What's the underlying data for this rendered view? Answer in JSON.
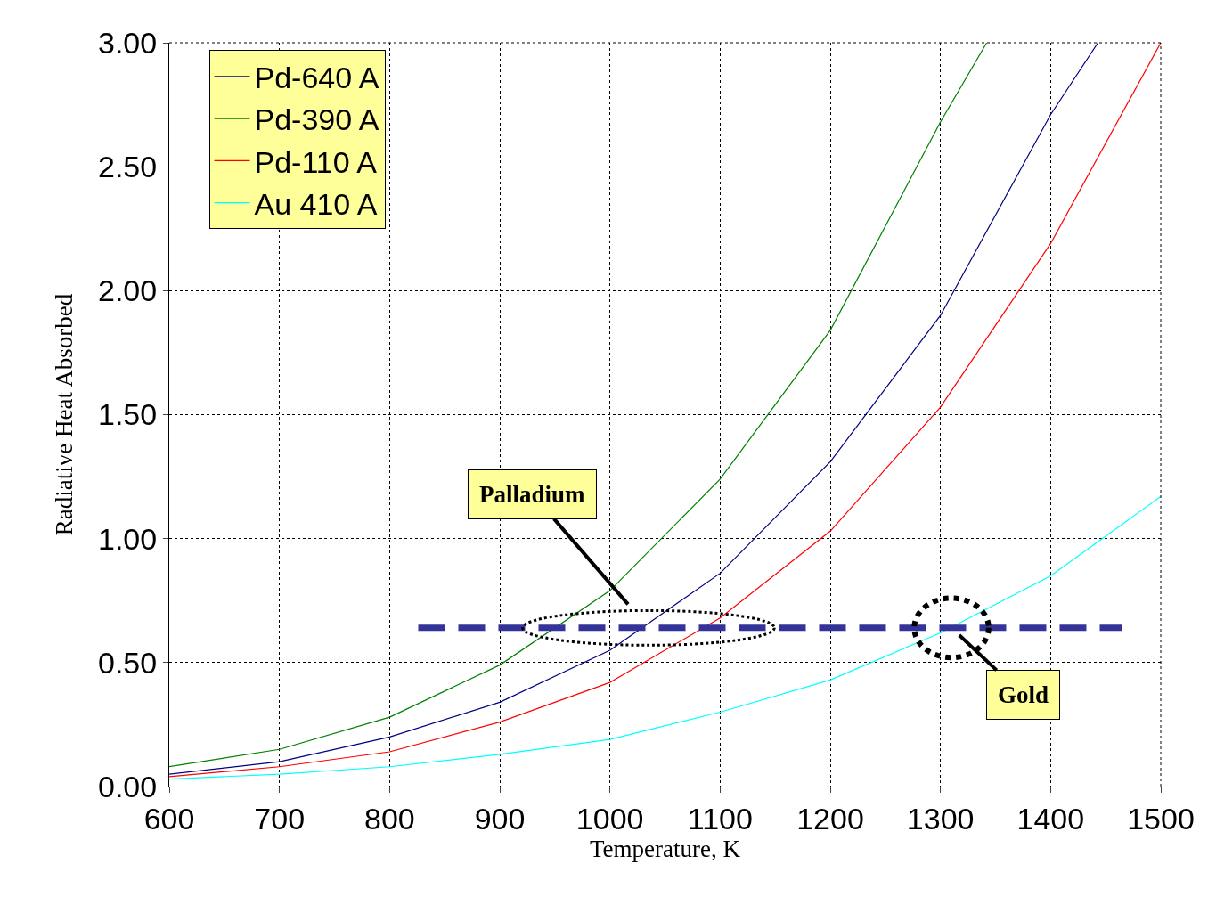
{
  "chart_data": {
    "type": "line",
    "xlabel": "Temperature, K",
    "ylabel": "Radiative Heat Absorbed",
    "xlim": [
      600,
      1500
    ],
    "ylim": [
      0,
      3
    ],
    "xticks": [
      600,
      700,
      800,
      900,
      1000,
      1100,
      1200,
      1300,
      1400,
      1500
    ],
    "yticks": [
      {
        "value": 0,
        "label": "0.00"
      },
      {
        "value": 0.5,
        "label": "0.50"
      },
      {
        "value": 1,
        "label": "1.00"
      },
      {
        "value": 1.5,
        "label": "1.50"
      },
      {
        "value": 2,
        "label": "2.00"
      },
      {
        "value": 2.5,
        "label": "2.50"
      },
      {
        "value": 3,
        "label": "3.00"
      }
    ],
    "grid": true,
    "legend": "top left",
    "marker": "none",
    "line_style": "solid",
    "series": [
      {
        "name": "Pd-640 A",
        "color": "#000080",
        "x": [
          600,
          700,
          800,
          900,
          1000,
          1100,
          1200,
          1300,
          1400,
          1443
        ],
        "values": [
          0.05,
          0.1,
          0.2,
          0.34,
          0.55,
          0.86,
          1.31,
          1.9,
          2.71,
          3.0
        ]
      },
      {
        "name": "Pd-390 A",
        "color": "#008000",
        "x": [
          600,
          700,
          800,
          900,
          1000,
          1100,
          1200,
          1300,
          1342
        ],
        "values": [
          0.08,
          0.15,
          0.28,
          0.49,
          0.79,
          1.24,
          1.84,
          2.68,
          3.0
        ]
      },
      {
        "name": "Pd-110 A",
        "color": "#ff0000",
        "x": [
          600,
          700,
          800,
          900,
          1000,
          1100,
          1200,
          1300,
          1400,
          1500
        ],
        "values": [
          0.04,
          0.08,
          0.14,
          0.26,
          0.42,
          0.68,
          1.03,
          1.53,
          2.19,
          3.0
        ]
      },
      {
        "name": "Au 410 A",
        "color": "#00ffff",
        "x": [
          600,
          700,
          800,
          900,
          1000,
          1100,
          1200,
          1300,
          1400,
          1500
        ],
        "values": [
          0.03,
          0.05,
          0.08,
          0.13,
          0.19,
          0.3,
          0.43,
          0.62,
          0.85,
          1.17
        ]
      },
      {
        "color": "#333399",
        "x": [
          826,
          1465
        ],
        "values": [
          0.64,
          0.64
        ],
        "line_style": "dashed"
      }
    ],
    "annotations": [
      {
        "text": "Palladium",
        "x": 1035,
        "y": 0.64
      },
      {
        "text": "Gold",
        "x": 1310,
        "y": 0.64
      }
    ]
  }
}
